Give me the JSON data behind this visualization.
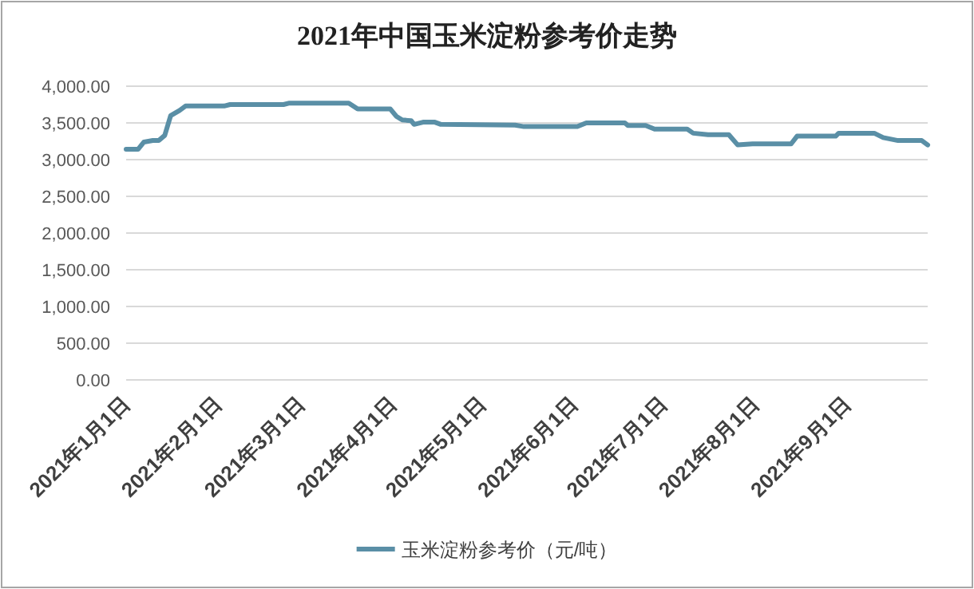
{
  "chart_data": {
    "type": "line",
    "title": "2021年中国玉米淀粉参考价走势",
    "x": [
      "2021-01-01",
      "2021-01-05",
      "2021-01-07",
      "2021-01-10",
      "2021-01-12",
      "2021-01-14",
      "2021-01-16",
      "2021-01-19",
      "2021-01-21",
      "2021-02-03",
      "2021-02-05",
      "2021-02-23",
      "2021-02-25",
      "2021-03-17",
      "2021-03-20",
      "2021-03-31",
      "2021-04-02",
      "2021-04-04",
      "2021-04-07",
      "2021-04-08",
      "2021-04-11",
      "2021-04-15",
      "2021-04-17",
      "2021-05-12",
      "2021-05-15",
      "2021-06-02",
      "2021-06-05",
      "2021-06-18",
      "2021-06-19",
      "2021-06-25",
      "2021-06-28",
      "2021-07-09",
      "2021-07-11",
      "2021-07-16",
      "2021-07-23",
      "2021-07-26",
      "2021-07-31",
      "2021-08-13",
      "2021-08-15",
      "2021-08-28",
      "2021-08-29",
      "2021-09-10",
      "2021-09-13",
      "2021-09-18",
      "2021-09-26",
      "2021-09-28"
    ],
    "series": [
      {
        "name": "玉米淀粉参考价（元/吨）",
        "color": "#5a8fa6",
        "values": [
          3140,
          3140,
          3240,
          3260,
          3260,
          3330,
          3600,
          3670,
          3730,
          3730,
          3750,
          3750,
          3770,
          3770,
          3690,
          3690,
          3590,
          3540,
          3530,
          3480,
          3510,
          3510,
          3480,
          3470,
          3450,
          3450,
          3500,
          3500,
          3465,
          3465,
          3415,
          3415,
          3360,
          3340,
          3340,
          3200,
          3215,
          3215,
          3320,
          3320,
          3360,
          3360,
          3300,
          3260,
          3260,
          3200
        ]
      }
    ],
    "xlim": [
      "2021-01-01",
      "2021-09-28"
    ],
    "xticks": [
      {
        "value": "2021-01-01",
        "label": "2021年1月1日"
      },
      {
        "value": "2021-02-01",
        "label": "2021年2月1日"
      },
      {
        "value": "2021-03-01",
        "label": "2021年3月1日"
      },
      {
        "value": "2021-04-01",
        "label": "2021年4月1日"
      },
      {
        "value": "2021-05-01",
        "label": "2021年5月1日"
      },
      {
        "value": "2021-06-01",
        "label": "2021年6月1日"
      },
      {
        "value": "2021-07-01",
        "label": "2021年7月1日"
      },
      {
        "value": "2021-08-01",
        "label": "2021年8月1日"
      },
      {
        "value": "2021-09-01",
        "label": "2021年9月1日"
      }
    ],
    "ylim": [
      0,
      4000
    ],
    "yticks": [
      {
        "value": 0,
        "label": "0.00"
      },
      {
        "value": 500,
        "label": "500.00"
      },
      {
        "value": 1000,
        "label": "1,000.00"
      },
      {
        "value": 1500,
        "label": "1,500.00"
      },
      {
        "value": 2000,
        "label": "2,000.00"
      },
      {
        "value": 2500,
        "label": "2,500.00"
      },
      {
        "value": 3000,
        "label": "3,000.00"
      },
      {
        "value": 3500,
        "label": "3,500.00"
      },
      {
        "value": 4000,
        "label": "4,000.00"
      }
    ],
    "grid": "y",
    "legend": "bottom",
    "marker": "none",
    "line_style": "solid"
  }
}
